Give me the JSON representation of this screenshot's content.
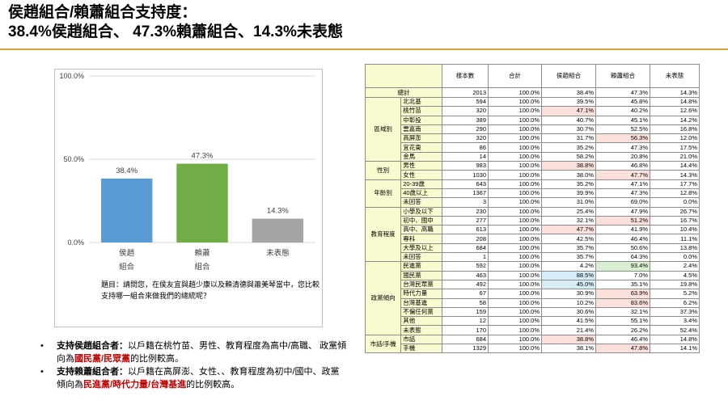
{
  "title": {
    "line1": "侯趙組合/賴蕭組合支持度：",
    "line2": "38.4%侯趙組合、 47.3%賴蕭組合、14.3%未表態"
  },
  "chart_data": {
    "type": "bar",
    "categories": [
      "侯趙\n組合",
      "賴蕭\n組合",
      "未表態"
    ],
    "values": [
      38.4,
      47.3,
      14.3
    ],
    "value_labels": [
      "38.4%",
      "47.3%",
      "14.3%"
    ],
    "colors": [
      "#5b9bd5",
      "#70ad47",
      "#a5a5a5"
    ],
    "ylim": [
      0,
      100
    ],
    "y_ticks": [
      0,
      50,
      100
    ],
    "y_tick_labels": [
      "0.0%",
      "50.0%",
      "100.0%"
    ],
    "grid": true
  },
  "question": "題目：請問您，在侯友宜與趙少康以及賴清德與蕭美琴當中，您比較支持哪一組合來做我們的總統呢？",
  "bullets": [
    {
      "lead": "支持侯趙組合者：",
      "pre": "以戶籍在桃竹苗、男性、教育程度為高中/高職、 政黨傾向為",
      "hl": "國民黨/民眾黨",
      "post": "的比例較高。"
    },
    {
      "lead": "支持賴蕭組合者：",
      "pre": "以戶籍在高屏澎、女性、、教育程度為初中/國中、政黨傾向為",
      "hl": "民進黨/時代力量/台灣基進",
      "post": "的比例較高。"
    }
  ],
  "table": {
    "headers": [
      "樣本數",
      "合計",
      "侯趙組合",
      "賴蕭組合",
      "未表態"
    ],
    "total": {
      "label": "總計",
      "values": [
        "2013",
        "100.0%",
        "38.4%",
        "47.3%",
        "14.3%"
      ]
    },
    "groups": [
      {
        "name": "區域別",
        "rows": [
          {
            "label": "北北基",
            "values": [
              "594",
              "100.0%",
              "39.5%",
              "45.8%",
              "14.8%"
            ],
            "hi": [
              null,
              null,
              null,
              null,
              null
            ]
          },
          {
            "label": "桃竹苗",
            "values": [
              "320",
              "100.0%",
              "47.1%",
              "40.2%",
              "12.6%"
            ],
            "hi": [
              null,
              null,
              "pink",
              null,
              null
            ]
          },
          {
            "label": "中彰投",
            "values": [
              "389",
              "100.0%",
              "40.7%",
              "45.1%",
              "14.2%"
            ],
            "hi": [
              null,
              null,
              null,
              null,
              null
            ]
          },
          {
            "label": "雲嘉南",
            "values": [
              "290",
              "100.0%",
              "30.7%",
              "52.5%",
              "16.8%"
            ],
            "hi": [
              null,
              null,
              null,
              null,
              null
            ]
          },
          {
            "label": "高屏澎",
            "values": [
              "320",
              "100.0%",
              "31.7%",
              "56.3%",
              "12.0%"
            ],
            "hi": [
              null,
              null,
              null,
              "pink",
              null
            ]
          },
          {
            "label": "宜花東",
            "values": [
              "86",
              "100.0%",
              "35.2%",
              "47.3%",
              "17.5%"
            ],
            "hi": [
              null,
              null,
              null,
              null,
              null
            ]
          },
          {
            "label": "金馬",
            "values": [
              "14",
              "100.0%",
              "58.2%",
              "20.8%",
              "21.0%"
            ],
            "hi": [
              null,
              null,
              null,
              null,
              null
            ]
          }
        ]
      },
      {
        "name": "性別",
        "rows": [
          {
            "label": "男性",
            "values": [
              "983",
              "100.0%",
              "38.8%",
              "46.8%",
              "14.4%"
            ],
            "hi": [
              null,
              null,
              "pink",
              null,
              null
            ]
          },
          {
            "label": "女性",
            "values": [
              "1030",
              "100.0%",
              "38.0%",
              "47.7%",
              "14.3%"
            ],
            "hi": [
              null,
              null,
              null,
              "pink",
              null
            ]
          }
        ]
      },
      {
        "name": "年齡別",
        "rows": [
          {
            "label": "20-39歲",
            "values": [
              "643",
              "100.0%",
              "35.2%",
              "47.1%",
              "17.7%"
            ],
            "hi": [
              null,
              null,
              null,
              null,
              null
            ]
          },
          {
            "label": "40歲以上",
            "values": [
              "1367",
              "100.0%",
              "39.9%",
              "47.3%",
              "12.8%"
            ],
            "hi": [
              null,
              null,
              null,
              null,
              null
            ]
          },
          {
            "label": "未回答",
            "values": [
              "3",
              "100.0%",
              "31.0%",
              "69.0%",
              "0.0%"
            ],
            "hi": [
              null,
              null,
              null,
              null,
              null
            ]
          }
        ]
      },
      {
        "name": "教育程度",
        "rows": [
          {
            "label": "小學及以下",
            "values": [
              "230",
              "100.0%",
              "25.4%",
              "47.9%",
              "26.7%"
            ],
            "hi": [
              null,
              null,
              null,
              null,
              null
            ]
          },
          {
            "label": "初中、國中",
            "values": [
              "277",
              "100.0%",
              "32.1%",
              "51.2%",
              "16.7%"
            ],
            "hi": [
              null,
              null,
              null,
              "pink",
              null
            ]
          },
          {
            "label": "高中、高職",
            "values": [
              "613",
              "100.0%",
              "47.7%",
              "41.9%",
              "10.4%"
            ],
            "hi": [
              null,
              null,
              "pink",
              null,
              null
            ]
          },
          {
            "label": "專科",
            "values": [
              "208",
              "100.0%",
              "42.5%",
              "46.4%",
              "11.1%"
            ],
            "hi": [
              null,
              null,
              null,
              null,
              null
            ]
          },
          {
            "label": "大學及以上",
            "values": [
              "684",
              "100.0%",
              "35.7%",
              "50.6%",
              "13.8%"
            ],
            "hi": [
              null,
              null,
              null,
              null,
              null
            ]
          },
          {
            "label": "未回答",
            "values": [
              "1",
              "100.0%",
              "35.7%",
              "64.3%",
              "0.0%"
            ],
            "hi": [
              null,
              null,
              null,
              null,
              null
            ]
          }
        ]
      },
      {
        "name": "政黨傾向",
        "rows": [
          {
            "label": "民進黨",
            "values": [
              "592",
              "100.0%",
              "4.2%",
              "93.4%",
              "2.4%"
            ],
            "hi": [
              null,
              null,
              null,
              "green",
              null
            ]
          },
          {
            "label": "國民黨",
            "values": [
              "463",
              "100.0%",
              "88.5%",
              "7.0%",
              "4.5%"
            ],
            "hi": [
              null,
              null,
              "blue",
              null,
              null
            ]
          },
          {
            "label": "台灣民眾黨",
            "values": [
              "492",
              "100.0%",
              "45.0%",
              "35.1%",
              "19.8%"
            ],
            "hi": [
              null,
              null,
              "blue",
              null,
              null
            ]
          },
          {
            "label": "時代力量",
            "values": [
              "67",
              "100.0%",
              "30.9%",
              "63.9%",
              "5.2%"
            ],
            "hi": [
              null,
              null,
              null,
              "pink",
              null
            ]
          },
          {
            "label": "台灣基進",
            "values": [
              "58",
              "100.0%",
              "10.2%",
              "83.6%",
              "6.2%"
            ],
            "hi": [
              null,
              null,
              null,
              "pink",
              null
            ]
          },
          {
            "label": "不偏任何黨",
            "values": [
              "159",
              "100.0%",
              "30.6%",
              "32.1%",
              "37.3%"
            ],
            "hi": [
              null,
              null,
              null,
              null,
              null
            ]
          },
          {
            "label": "其他",
            "values": [
              "12",
              "100.0%",
              "41.5%",
              "55.1%",
              "3.4%"
            ],
            "hi": [
              null,
              null,
              null,
              null,
              null
            ]
          },
          {
            "label": "未表態",
            "values": [
              "170",
              "100.0%",
              "21.4%",
              "26.2%",
              "52.4%"
            ],
            "hi": [
              null,
              null,
              null,
              null,
              null
            ]
          }
        ]
      },
      {
        "name": "市話/手機",
        "rows": [
          {
            "label": "市話",
            "values": [
              "684",
              "100.0%",
              "38.8%",
              "46.4%",
              "14.8%"
            ],
            "hi": [
              null,
              null,
              "pink",
              null,
              null
            ]
          },
          {
            "label": "手機",
            "values": [
              "1329",
              "100.0%",
              "38.1%",
              "47.8%",
              "14.1%"
            ],
            "hi": [
              null,
              null,
              null,
              "pink",
              null
            ]
          }
        ]
      }
    ]
  }
}
